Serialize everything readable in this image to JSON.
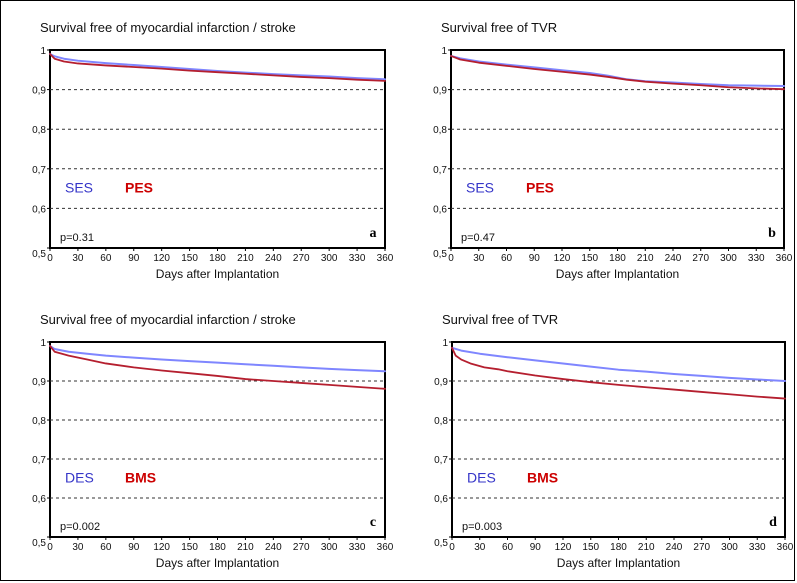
{
  "figure": {
    "colors": {
      "blue": "#7f86ff",
      "red": "#b51f2f",
      "axis": "#000000",
      "grid": "#333333",
      "legend_blue": "#3535c8",
      "legend_red": "#cc0000"
    }
  },
  "chart_data": [
    {
      "type": "line",
      "panel": "a",
      "title": "Survival free of myocardial infarction / stroke",
      "xlabel": "Days after Implantation",
      "ylabel": "",
      "xlim": [
        0,
        360
      ],
      "ylim": [
        0.5,
        1.0
      ],
      "xticks": [
        "0",
        "30",
        "60",
        "90",
        "120",
        "150",
        "180",
        "210",
        "240",
        "270",
        "300",
        "330",
        "360"
      ],
      "yticks": [
        "0,5",
        "0,6",
        "0,7",
        "0,8",
        "0,9",
        "1"
      ],
      "grid": "horizontal dashed at 0.6, 0.7, 0.8, 0.9",
      "p_value": "p=0.31",
      "series": [
        {
          "name": "SES",
          "color": "#7f86ff",
          "x": [
            0,
            5,
            15,
            30,
            60,
            90,
            120,
            150,
            180,
            210,
            240,
            270,
            300,
            330,
            360
          ],
          "y": [
            0.99,
            0.984,
            0.978,
            0.973,
            0.967,
            0.962,
            0.957,
            0.952,
            0.947,
            0.943,
            0.939,
            0.936,
            0.933,
            0.929,
            0.926
          ]
        },
        {
          "name": "PES",
          "color": "#b51f2f",
          "x": [
            0,
            5,
            15,
            30,
            60,
            90,
            120,
            150,
            180,
            210,
            240,
            270,
            300,
            330,
            360
          ],
          "y": [
            0.99,
            0.978,
            0.971,
            0.966,
            0.961,
            0.957,
            0.953,
            0.948,
            0.944,
            0.94,
            0.936,
            0.932,
            0.929,
            0.925,
            0.922
          ]
        }
      ]
    },
    {
      "type": "line",
      "panel": "b",
      "title": "Survival free of TVR",
      "xlabel": "Days after Implantation",
      "ylabel": "",
      "xlim": [
        0,
        360
      ],
      "ylim": [
        0.5,
        1.0
      ],
      "xticks": [
        "0",
        "30",
        "60",
        "90",
        "120",
        "150",
        "180",
        "210",
        "240",
        "270",
        "300",
        "330",
        "360"
      ],
      "yticks": [
        "0,5",
        "0,6",
        "0,7",
        "0,8",
        "0,9",
        "1"
      ],
      "grid": "horizontal dashed at 0.6, 0.7, 0.8, 0.9",
      "p_value": "p=0.47",
      "series": [
        {
          "name": "SES",
          "color": "#7f86ff",
          "x": [
            0,
            10,
            30,
            60,
            90,
            120,
            150,
            170,
            190,
            210,
            240,
            270,
            300,
            330,
            360
          ],
          "y": [
            0.985,
            0.979,
            0.971,
            0.963,
            0.956,
            0.949,
            0.942,
            0.935,
            0.926,
            0.921,
            0.918,
            0.914,
            0.911,
            0.91,
            0.909
          ]
        },
        {
          "name": "PES",
          "color": "#b51f2f",
          "x": [
            0,
            10,
            30,
            60,
            90,
            120,
            150,
            170,
            190,
            210,
            240,
            270,
            300,
            330,
            360
          ],
          "y": [
            0.985,
            0.976,
            0.968,
            0.96,
            0.952,
            0.945,
            0.938,
            0.932,
            0.925,
            0.92,
            0.915,
            0.911,
            0.906,
            0.903,
            0.901
          ]
        }
      ]
    },
    {
      "type": "line",
      "panel": "c",
      "title": "Survival free of myocardial infarction / stroke",
      "xlabel": "Days after Implantation",
      "ylabel": "",
      "xlim": [
        0,
        360
      ],
      "ylim": [
        0.5,
        1.0
      ],
      "xticks": [
        "0",
        "30",
        "60",
        "90",
        "120",
        "150",
        "180",
        "210",
        "240",
        "270",
        "300",
        "330",
        "360"
      ],
      "yticks": [
        "0,5",
        "0,6",
        "0,7",
        "0,8",
        "0,9",
        "1"
      ],
      "grid": "horizontal dashed at 0.6, 0.7, 0.8, 0.9",
      "p_value": "p=0.002",
      "series": [
        {
          "name": "DES",
          "color": "#7f86ff",
          "x": [
            0,
            5,
            20,
            40,
            60,
            90,
            120,
            150,
            180,
            210,
            240,
            270,
            300,
            330,
            360
          ],
          "y": [
            0.99,
            0.982,
            0.975,
            0.97,
            0.965,
            0.96,
            0.955,
            0.951,
            0.947,
            0.943,
            0.939,
            0.935,
            0.931,
            0.928,
            0.925
          ]
        },
        {
          "name": "BMS",
          "color": "#b51f2f",
          "x": [
            0,
            5,
            20,
            40,
            60,
            90,
            120,
            150,
            180,
            210,
            240,
            270,
            300,
            330,
            360
          ],
          "y": [
            0.99,
            0.975,
            0.965,
            0.955,
            0.945,
            0.935,
            0.927,
            0.92,
            0.913,
            0.905,
            0.9,
            0.895,
            0.89,
            0.885,
            0.88
          ]
        }
      ]
    },
    {
      "type": "line",
      "panel": "d",
      "title": "Survival free of TVR",
      "xlabel": "Days after Implantation",
      "ylabel": "",
      "xlim": [
        0,
        360
      ],
      "ylim": [
        0.5,
        1.0
      ],
      "xticks": [
        "0",
        "30",
        "60",
        "90",
        "120",
        "150",
        "180",
        "210",
        "240",
        "270",
        "300",
        "330",
        "360"
      ],
      "yticks": [
        "0,5",
        "0,6",
        "0,7",
        "0,8",
        "0,9",
        "1"
      ],
      "grid": "horizontal dashed at 0.6, 0.7, 0.8, 0.9",
      "p_value": "p=0.003",
      "series": [
        {
          "name": "DES",
          "color": "#7f86ff",
          "x": [
            0,
            10,
            30,
            60,
            90,
            120,
            150,
            180,
            210,
            240,
            270,
            300,
            330,
            360
          ],
          "y": [
            0.985,
            0.978,
            0.97,
            0.961,
            0.953,
            0.945,
            0.937,
            0.929,
            0.924,
            0.918,
            0.913,
            0.908,
            0.904,
            0.9
          ]
        },
        {
          "name": "BMS",
          "color": "#b51f2f",
          "x": [
            0,
            4,
            10,
            20,
            35,
            50,
            60,
            90,
            120,
            150,
            180,
            210,
            240,
            270,
            300,
            330,
            360
          ],
          "y": [
            0.985,
            0.965,
            0.955,
            0.945,
            0.935,
            0.93,
            0.925,
            0.914,
            0.905,
            0.897,
            0.89,
            0.884,
            0.878,
            0.872,
            0.866,
            0.86,
            0.855
          ]
        }
      ]
    }
  ]
}
